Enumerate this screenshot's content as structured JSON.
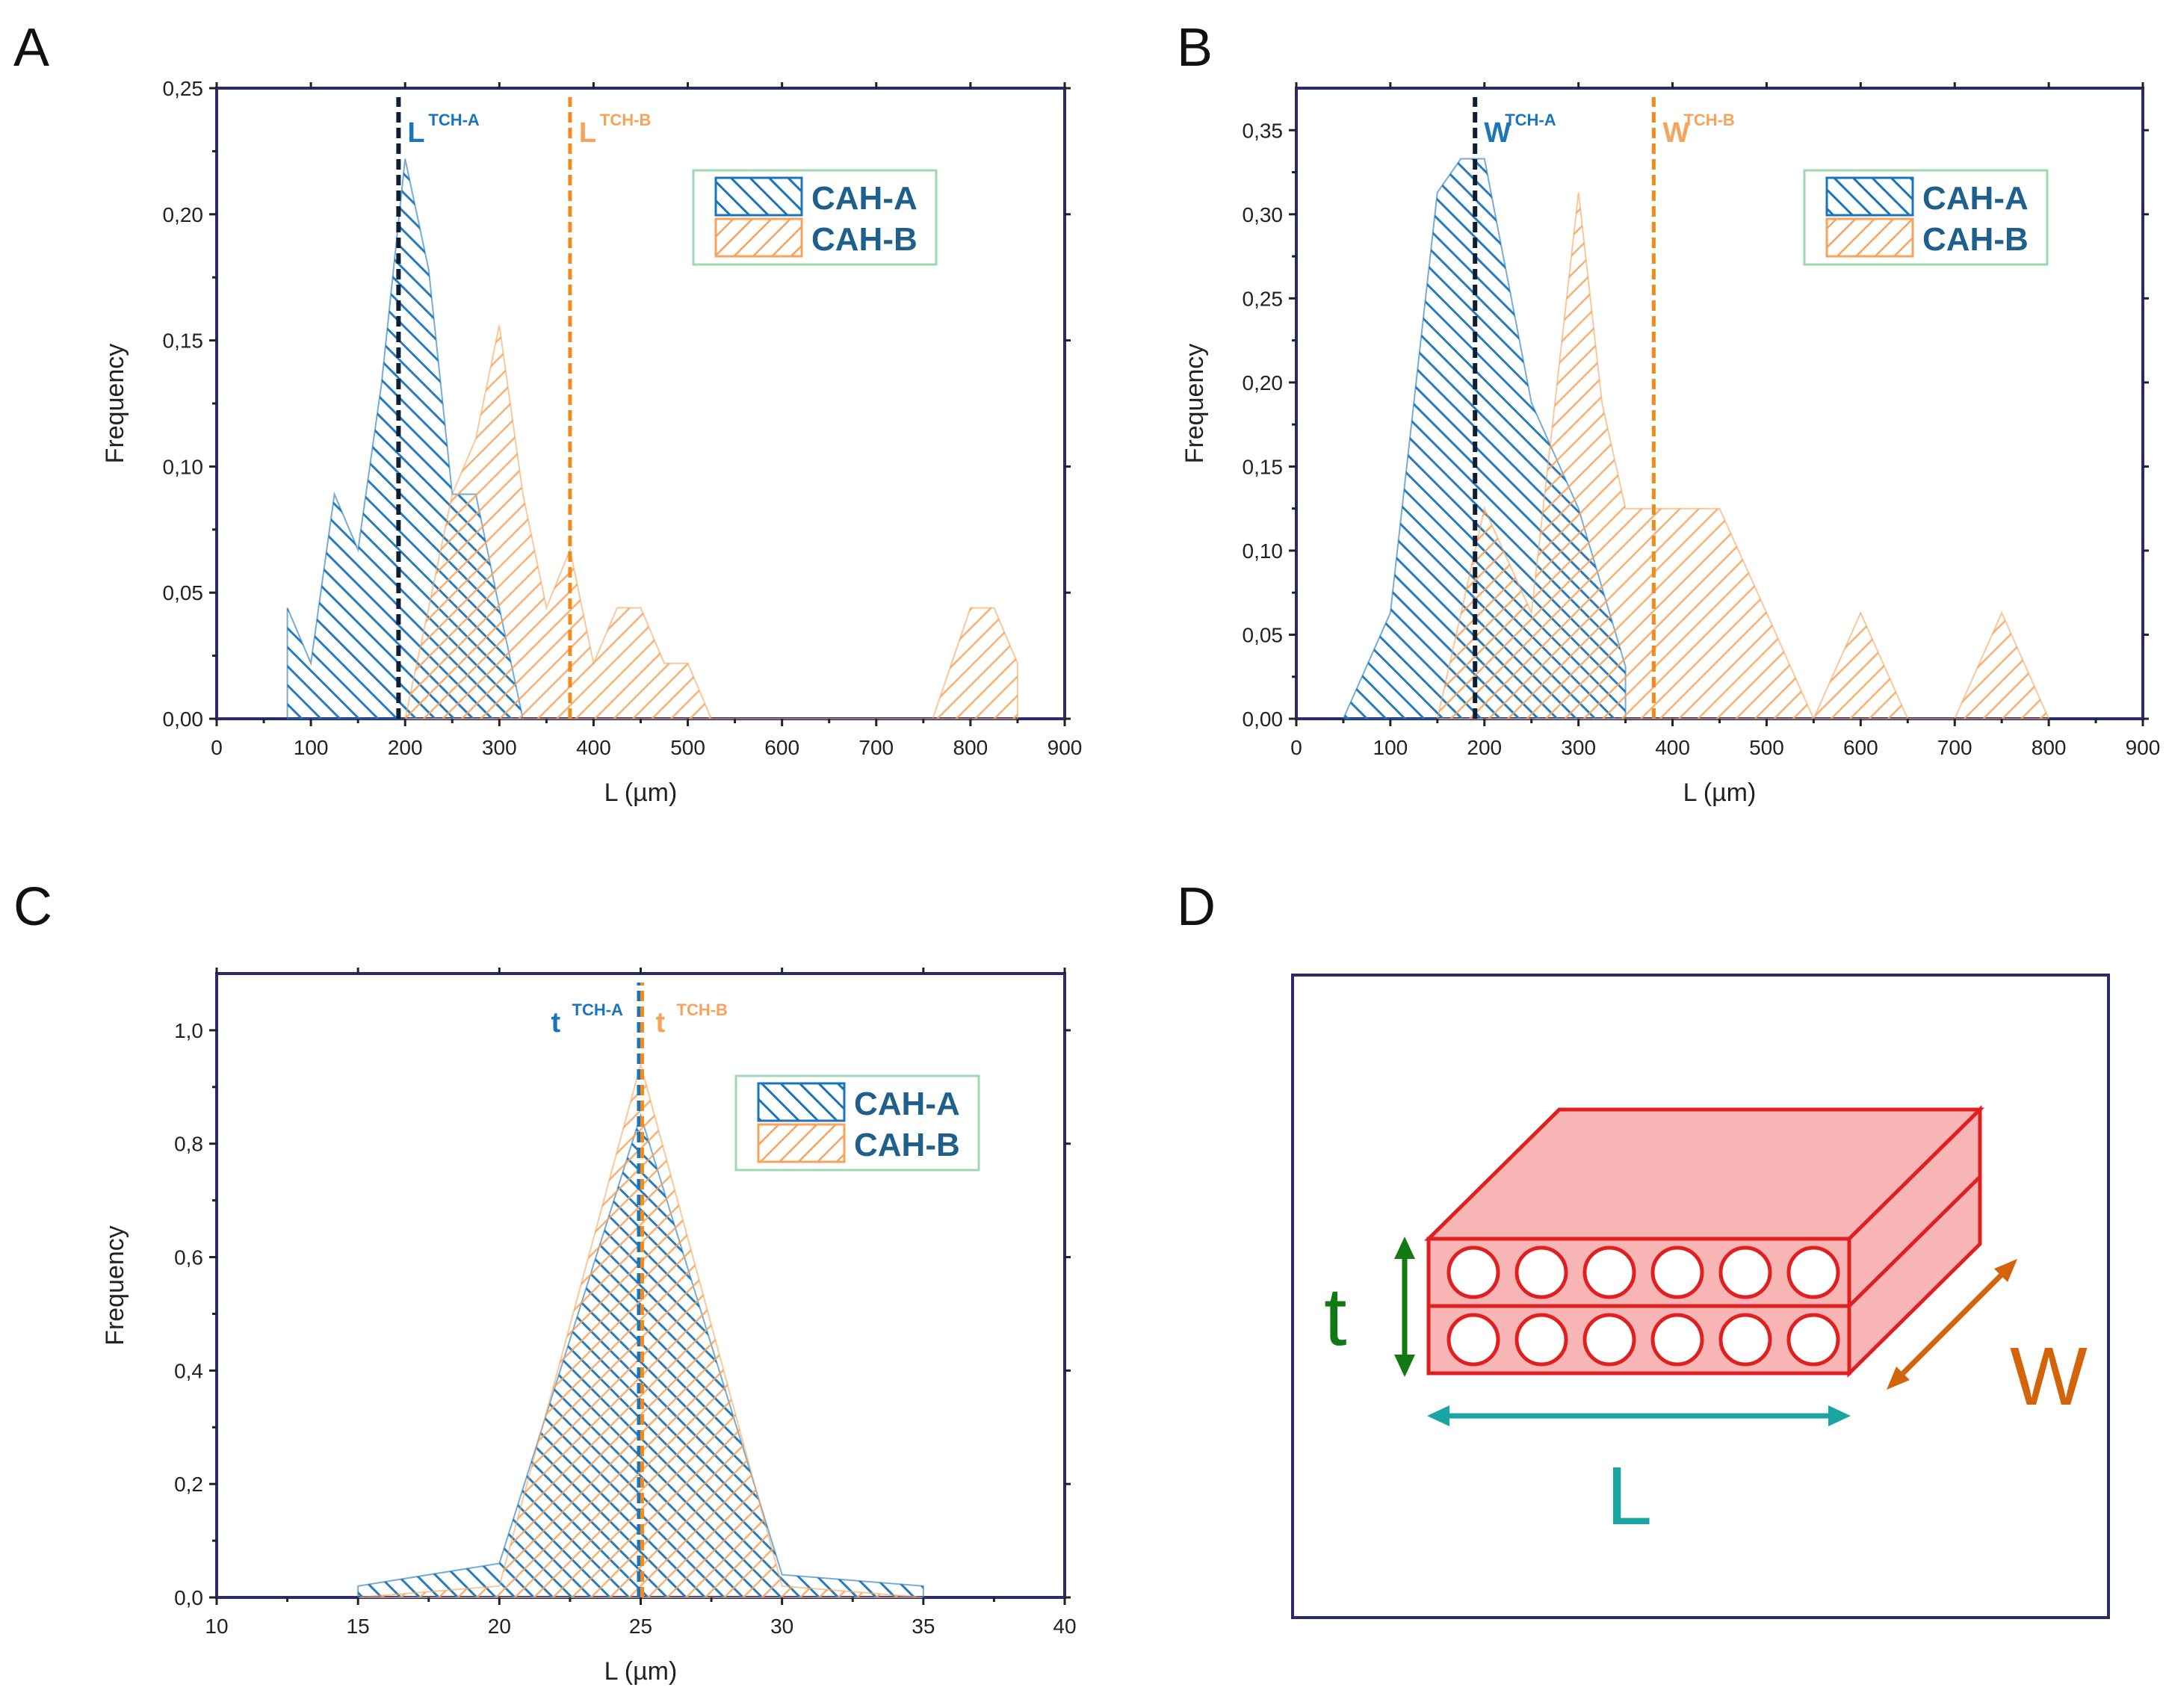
{
  "colors": {
    "cah_a": "#1b75bb",
    "cah_b": "#f7a35c",
    "mean_a_line": "#0f1f33",
    "mean_b_line": "#f28a1c",
    "frame": "#2b2b6b",
    "legend_border": "#9fd8b0",
    "plate_fill": "#f7b5b5",
    "plate_stroke": "#e02020",
    "t_color": "#137a13",
    "w_color": "#d4640c",
    "l_color": "#1aa5a5"
  },
  "chart_data": [
    {
      "panel": "A",
      "type": "area",
      "xlabel": "L (µm)",
      "ylabel": "Frequency",
      "xlim": [
        0,
        900
      ],
      "ylim": [
        0,
        0.25
      ],
      "xticks": [
        "0",
        "100",
        "200",
        "300",
        "400",
        "500",
        "600",
        "700",
        "800",
        "900"
      ],
      "yticks": [
        "0,00",
        "0,05",
        "0,10",
        "0,15",
        "0,20",
        "0,25"
      ],
      "legend": [
        "CAH-A",
        "CAH-B"
      ],
      "series": [
        {
          "name": "CAH-A",
          "x": [
            75,
            75,
            100,
            125,
            150,
            175,
            200,
            225,
            250,
            275,
            300,
            325,
            325
          ],
          "y": [
            0,
            0.044,
            0.022,
            0.089,
            0.067,
            0.133,
            0.222,
            0.178,
            0.089,
            0.089,
            0.044,
            0.0,
            0
          ]
        },
        {
          "name": "CAH-B",
          "x": [
            200,
            225,
            250,
            275,
            300,
            325,
            350,
            375,
            400,
            425,
            450,
            475,
            500,
            525,
            760,
            800,
            825,
            850,
            850
          ],
          "y": [
            0,
            0.044,
            0.089,
            0.111,
            0.156,
            0.089,
            0.044,
            0.067,
            0.022,
            0.044,
            0.044,
            0.022,
            0.022,
            0,
            0,
            0.044,
            0.044,
            0.022,
            0
          ]
        }
      ],
      "mean_lines": [
        {
          "series": "CAH-A",
          "x": 193,
          "label": "L",
          "sup": "TCH-A"
        },
        {
          "series": "CAH-B",
          "x": 375,
          "label": "L",
          "sup": "TCH-B"
        }
      ]
    },
    {
      "panel": "B",
      "type": "area",
      "xlabel": "L (µm)",
      "ylabel": "Frequency",
      "xlim": [
        0,
        900
      ],
      "ylim": [
        0,
        0.375
      ],
      "xticks": [
        "0",
        "100",
        "200",
        "300",
        "400",
        "500",
        "600",
        "700",
        "800",
        "900"
      ],
      "yticks": [
        "0,00",
        "0,05",
        "0,10",
        "0,15",
        "0,20",
        "0,25",
        "0,30",
        "0,35"
      ],
      "legend": [
        "CAH-A",
        "CAH-B"
      ],
      "series": [
        {
          "name": "CAH-A",
          "x": [
            50,
            100,
            150,
            175,
            200,
            250,
            300,
            350,
            350
          ],
          "y": [
            0,
            0.063,
            0.313,
            0.333,
            0.333,
            0.188,
            0.125,
            0.031,
            0
          ]
        },
        {
          "name": "CAH-B",
          "x": [
            150,
            200,
            250,
            275,
            300,
            325,
            350,
            375,
            400,
            450,
            500,
            550,
            600,
            650,
            700,
            750,
            800
          ],
          "y": [
            0,
            0.125,
            0.063,
            0.188,
            0.313,
            0.188,
            0.125,
            0.125,
            0.125,
            0.125,
            0.063,
            0,
            0.063,
            0,
            0,
            0.063,
            0
          ]
        }
      ],
      "mean_lines": [
        {
          "series": "CAH-A",
          "x": 190,
          "label": "W",
          "sup": "TCH-A"
        },
        {
          "series": "CAH-B",
          "x": 380,
          "label": "W",
          "sup": "TCH-B"
        }
      ]
    },
    {
      "panel": "C",
      "type": "area",
      "xlabel": "L (µm)",
      "ylabel": "Frequency",
      "xlim": [
        10,
        40
      ],
      "ylim": [
        0,
        1.1
      ],
      "xticks": [
        "10",
        "15",
        "20",
        "25",
        "30",
        "35",
        "40"
      ],
      "yticks": [
        "0,0",
        "0,2",
        "0,4",
        "0,6",
        "0,8",
        "1,0"
      ],
      "legend": [
        "CAH-A",
        "CAH-B"
      ],
      "series": [
        {
          "name": "CAH-A",
          "x": [
            15,
            15,
            20,
            25,
            30,
            35,
            35
          ],
          "y": [
            0,
            0.02,
            0.06,
            0.85,
            0.04,
            0.02,
            0
          ]
        },
        {
          "name": "CAH-B",
          "x": [
            15,
            20,
            25,
            30,
            35
          ],
          "y": [
            0,
            0.02,
            0.94,
            0.02,
            0
          ]
        }
      ],
      "mean_lines": [
        {
          "series": "CAH-A",
          "x": 25,
          "label": "t",
          "sup": "TCH-A"
        },
        {
          "series": "CAH-B",
          "x": 25,
          "label": "t",
          "sup": "TCH-B"
        }
      ]
    }
  ],
  "panels": {
    "a_letter": "A",
    "b_letter": "B",
    "c_letter": "C",
    "d_letter": "D"
  },
  "diagram": {
    "t_label": "t",
    "w_label": "W",
    "l_label": "L"
  }
}
